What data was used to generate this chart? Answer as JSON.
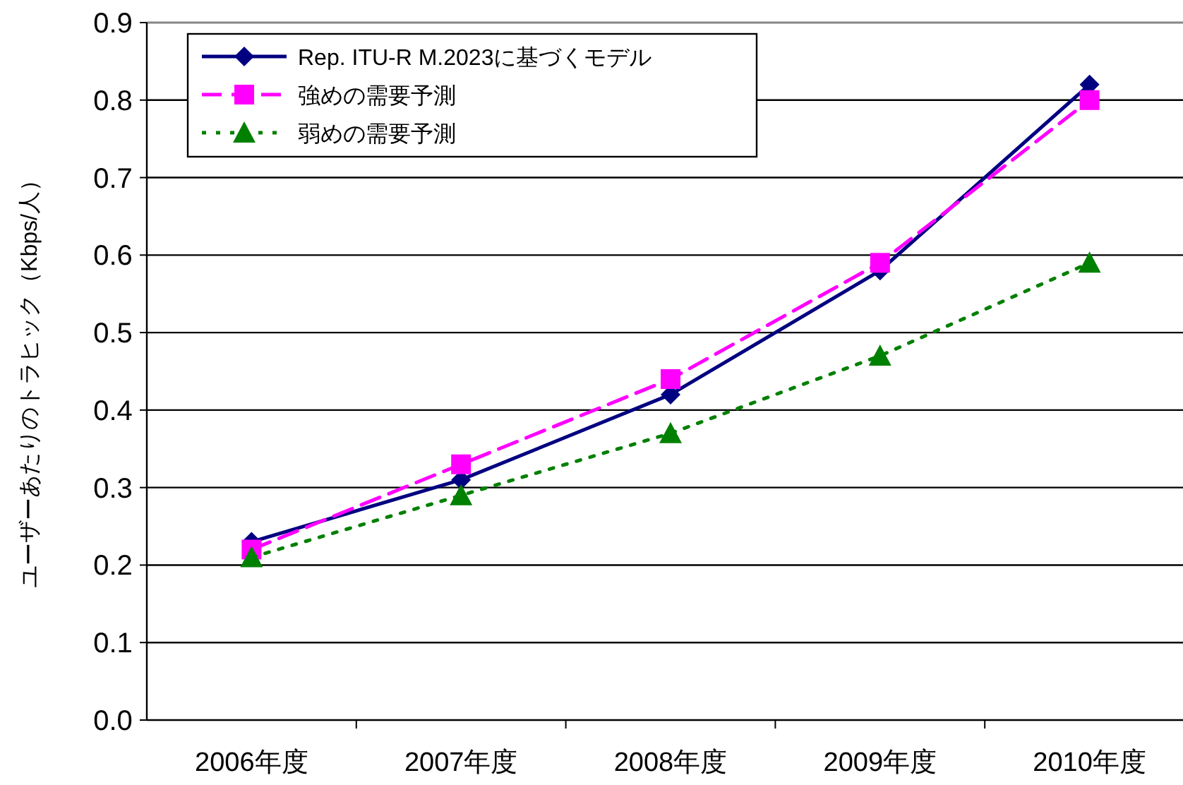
{
  "chart_data": {
    "type": "line",
    "ylabel": "ユーザーあたりのトラヒック（Kbps/人）",
    "categories": [
      "2006年度",
      "2007年度",
      "2008年度",
      "2009年度",
      "2010年度"
    ],
    "series": [
      {
        "name": "Rep. ITU-R M.2023に基づくモデル",
        "color": "#000080",
        "marker": "diamond",
        "line_style": "solid",
        "values": [
          0.23,
          0.31,
          0.42,
          0.58,
          0.82
        ]
      },
      {
        "name": "強めの需要予測",
        "color": "#ff00ff",
        "marker": "square",
        "line_style": "dashed",
        "values": [
          0.22,
          0.33,
          0.44,
          0.59,
          0.8
        ]
      },
      {
        "name": "弱めの需要予測",
        "color": "#008000",
        "marker": "triangle",
        "line_style": "dotted",
        "values": [
          0.21,
          0.29,
          0.37,
          0.47,
          0.59
        ]
      }
    ],
    "ylim": [
      0,
      0.9
    ],
    "yticks": [
      {
        "value": 0,
        "label": "0.0"
      },
      0.1,
      0.2,
      0.3,
      0.4,
      0.5,
      0.6,
      0.7,
      0.8,
      0.9
    ],
    "grid": "y",
    "legend": "top left"
  }
}
